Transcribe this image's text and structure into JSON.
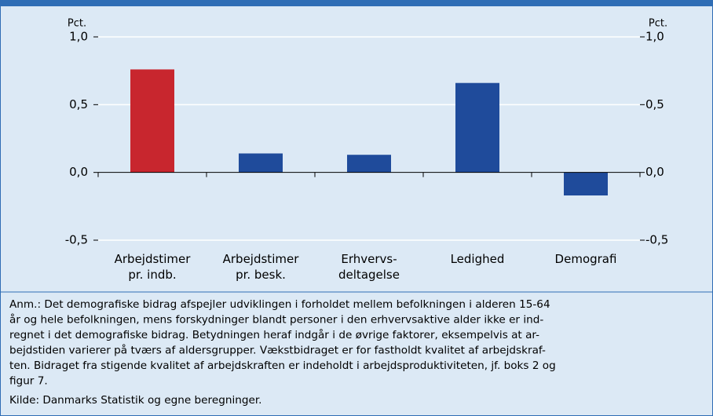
{
  "chart_data": {
    "type": "bar",
    "y_label": "Pct.",
    "y2_label": "Pct.",
    "categories": [
      [
        "Arbejdstimer",
        "pr. indb."
      ],
      [
        "Arbejdstimer",
        "pr. besk."
      ],
      [
        "Erhvervs-",
        "deltagelse"
      ],
      [
        "Ledighed"
      ],
      [
        "Demografi"
      ]
    ],
    "values": [
      0.76,
      0.14,
      0.13,
      0.66,
      -0.17
    ],
    "colors": [
      "#c8262e",
      "#1f4b9b",
      "#1f4b9b",
      "#1f4b9b",
      "#1f4b9b"
    ],
    "ylim": [
      -0.5,
      1.0
    ],
    "yticks": [
      {
        "value": -0.5,
        "label": "-0,5"
      },
      {
        "value": 0,
        "label": "0,0"
      },
      {
        "value": 0.5,
        "label": "0,5"
      },
      {
        "value": 1.0,
        "label": "1,0"
      }
    ],
    "y2lim": [
      -0.5,
      1.0
    ],
    "y2ticks": [
      {
        "value": -0.5,
        "label": "-0,5"
      },
      {
        "value": 0,
        "label": "0,0"
      },
      {
        "value": 0.5,
        "label": "0,5"
      },
      {
        "value": 1.0,
        "label": "1,0"
      }
    ],
    "grid": true,
    "note": [
      "Anm.: Det demografiske bidrag afspejler udviklingen i forholdet mellem befolkningen i alderen 15-64",
      "år og hele befolkningen, mens forskydninger blandt personer i den erhvervsaktive alder ikke er ind-",
      "regnet i det demografiske bidrag. Betydningen heraf indgår i de øvrige faktorer, eksempelvis at ar-",
      "bejdstiden varierer på tværs af aldersgrupper. Vækstbidraget er for fastholdt kvalitet af arbejdskraf-",
      "ten. Bidraget fra stigende kvalitet af arbejdskraften er indeholdt i arbejdsproduktiviteten, jf. boks 2 og",
      "figur 7."
    ],
    "source": "Kilde: Danmarks Statistik og egne beregninger."
  }
}
